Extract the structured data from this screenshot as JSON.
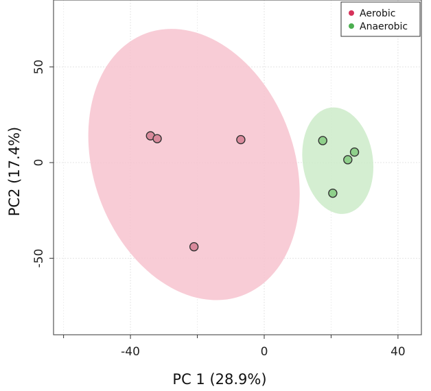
{
  "chart_data": {
    "type": "scatter",
    "title": "",
    "xlabel": "PC 1 (28.9%)",
    "ylabel": "PC2 (17.4%)",
    "xlim": [
      -63,
      47
    ],
    "ylim": [
      -90,
      85
    ],
    "xticks": [
      -40,
      0,
      40
    ],
    "yticks": [
      -50,
      0,
      50
    ],
    "grid": true,
    "legend_position": "top-right",
    "series": [
      {
        "name": "Aerobic",
        "color": "#d6325a",
        "point_fill": "#d98a9c",
        "ellipse_color": "#f7c3cf",
        "points": [
          {
            "x": -34,
            "y": 14
          },
          {
            "x": -32,
            "y": 12.5
          },
          {
            "x": -7,
            "y": 12
          },
          {
            "x": -21,
            "y": -44
          }
        ],
        "ellipse": {
          "cx": -21,
          "cy": -1,
          "rx": 30,
          "ry": 73,
          "angle": -20
        }
      },
      {
        "name": "Anaerobic",
        "color": "#4caf50",
        "point_fill": "#8fd08b",
        "ellipse_color": "#cdebc9",
        "points": [
          {
            "x": 17.5,
            "y": 11.5
          },
          {
            "x": 27,
            "y": 5.5
          },
          {
            "x": 25,
            "y": 1.5
          },
          {
            "x": 20.5,
            "y": -16
          }
        ],
        "ellipse": {
          "cx": 22,
          "cy": 1,
          "rx": 10.5,
          "ry": 28,
          "angle": -8
        }
      }
    ]
  }
}
